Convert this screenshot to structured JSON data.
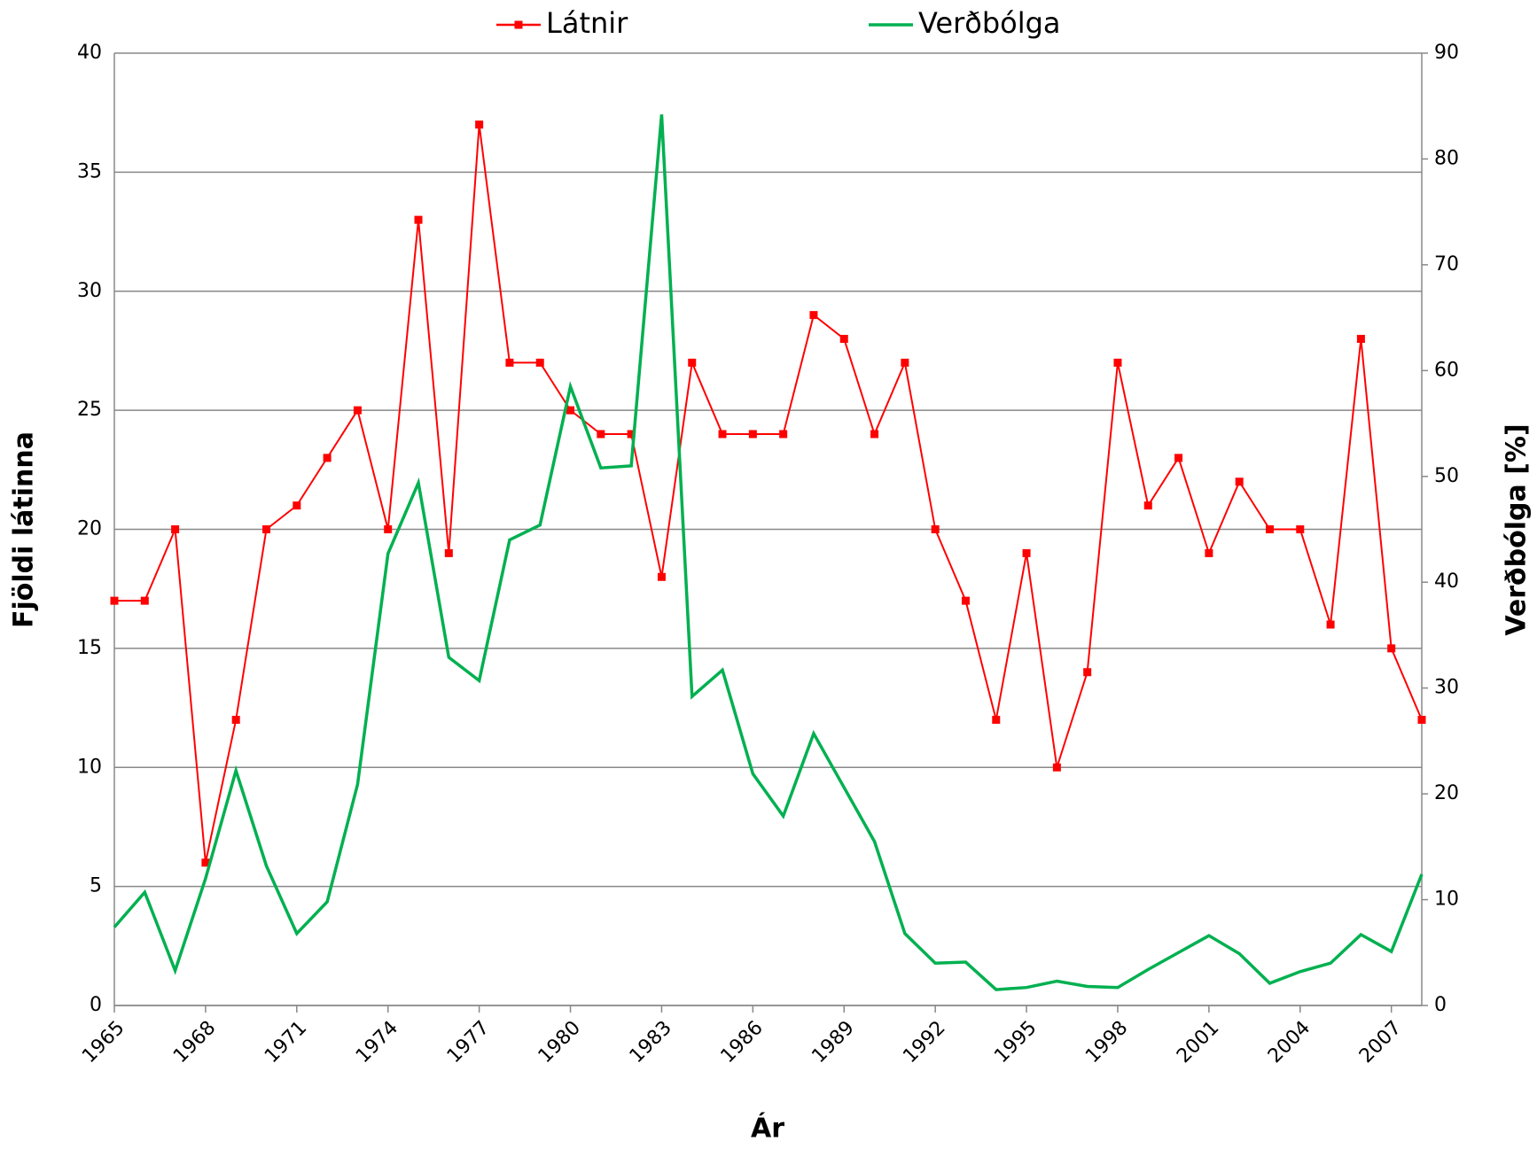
{
  "chart_data": {
    "type": "line",
    "x": [
      1965,
      1966,
      1967,
      1968,
      1969,
      1970,
      1971,
      1972,
      1973,
      1974,
      1975,
      1976,
      1977,
      1978,
      1979,
      1980,
      1981,
      1982,
      1983,
      1984,
      1985,
      1986,
      1987,
      1988,
      1989,
      1990,
      1991,
      1992,
      1993,
      1994,
      1995,
      1996,
      1997,
      1998,
      1999,
      2000,
      2001,
      2002,
      2003,
      2004,
      2005,
      2006,
      2007,
      2008
    ],
    "series": [
      {
        "name": "Látnir",
        "color": "#ff0000",
        "marker": "square",
        "values": [
          17,
          17,
          20,
          6,
          12,
          20,
          21,
          23,
          25,
          20,
          33,
          19,
          37,
          27,
          27,
          25,
          24,
          24,
          18,
          27,
          24,
          24,
          24,
          29,
          28,
          24,
          27,
          20,
          17,
          12,
          19,
          10,
          14,
          27,
          21,
          23,
          19,
          22,
          20,
          20,
          16,
          28,
          15,
          12
        ]
      },
      {
        "name": "Verðbólga",
        "color": "#00b050",
        "axis": "y2",
        "values": [
          7.4,
          10.7,
          3.3,
          12,
          22.2,
          13.2,
          6.8,
          9.8,
          20.9,
          42.7,
          49.4,
          32.9,
          30.7,
          44,
          45.4,
          58.5,
          50.8,
          51,
          84.2,
          29.2,
          31.7,
          21.9,
          17.9,
          25.7,
          20.6,
          15.5,
          6.8,
          4.0,
          4.1,
          1.5,
          1.7,
          2.3,
          1.8,
          1.7,
          3.4,
          5.0,
          6.6,
          4.9,
          2.1,
          3.2,
          4.0,
          6.7,
          5.1,
          12.4
        ]
      }
    ],
    "xlim": [
      1965,
      2008
    ],
    "xticks": [
      1965,
      1968,
      1971,
      1974,
      1977,
      1980,
      1983,
      1986,
      1989,
      1992,
      1995,
      1998,
      2001,
      2004,
      2007
    ],
    "ylim": [
      0,
      40
    ],
    "yticks": [
      0,
      5,
      10,
      15,
      20,
      25,
      30,
      35,
      40
    ],
    "y2lim": [
      0,
      90
    ],
    "y2ticks": [
      0,
      10,
      20,
      30,
      40,
      50,
      60,
      70,
      80,
      90
    ],
    "xlabel": "Ár",
    "ylabel": "Fjöldi látinna",
    "y2label": "Verðbólga [%]",
    "grid": true,
    "legend": "top"
  }
}
